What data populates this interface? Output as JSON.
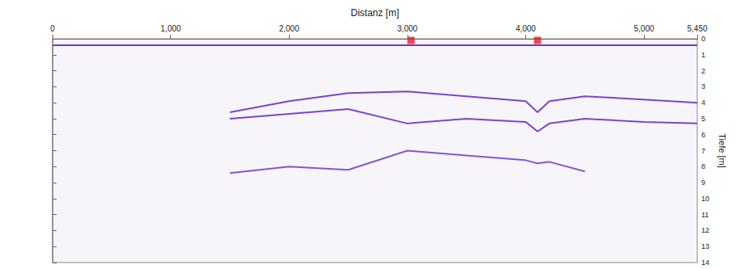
{
  "chart_data": {
    "type": "line",
    "x_label": "Distanz [m]",
    "y_label": "Tiefe [m]",
    "x": [
      0,
      500,
      1000,
      1500,
      2000,
      2500,
      3000,
      3500,
      4000,
      4100,
      4200,
      4500,
      5000,
      5450
    ],
    "xlim": [
      0,
      5450
    ],
    "xticks": [
      0,
      1000,
      2000,
      3000,
      4000,
      5000
    ],
    "ylim": [
      0,
      14
    ],
    "yticks": [
      0,
      1,
      2,
      3,
      4,
      5,
      6,
      7,
      8,
      9,
      10,
      11,
      12,
      13,
      14
    ],
    "grid": false,
    "series": [
      {
        "color": "#6a3fb5",
        "line_style": "solid",
        "values": [
          0.4,
          0.4,
          0.4,
          0.4,
          0.4,
          0.4,
          0.4,
          0.4,
          0.4,
          0.4,
          0.4,
          0.4,
          0.4,
          0.4
        ]
      },
      {
        "color": "#7d45c8",
        "line_style": "solid",
        "values": [
          null,
          null,
          null,
          4.6,
          3.9,
          3.4,
          3.3,
          3.6,
          3.9,
          4.6,
          3.9,
          3.6,
          3.8,
          4.0
        ]
      },
      {
        "color": "#7d45c8",
        "line_style": "solid",
        "values": [
          null,
          null,
          null,
          5.0,
          4.7,
          4.4,
          5.3,
          5.0,
          5.2,
          5.8,
          5.3,
          5.0,
          5.2,
          5.3
        ]
      },
      {
        "color": "#8a55cf",
        "line_style": "solid",
        "values": [
          null,
          null,
          null,
          8.4,
          8.0,
          8.2,
          7.0,
          7.3,
          7.6,
          7.8,
          7.7,
          8.3,
          null,
          null
        ]
      },
      {
        "type": "scatter",
        "marker": "square",
        "color": "#e0202a",
        "x": [
          3030,
          4100
        ],
        "values": [
          0.1,
          0.1
        ]
      }
    ]
  }
}
